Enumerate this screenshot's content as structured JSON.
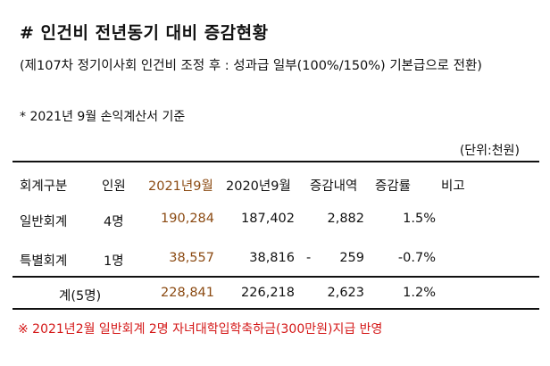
{
  "title": "# 인건비 전년동기 대비 증감현황",
  "subtitle": "(제107차 정기이사회  인건비 조정 후 : 성과급 일부(100%/150%) 기본급으로 전환)",
  "basis_note": "*  2021년 9월 손익계산서 기준",
  "unit_label": "(단위:천원)",
  "table": {
    "headers": {
      "category": "회계구분",
      "headcount": "인원",
      "current": "2021년9월",
      "previous": "2020년9월",
      "change": "증감내역",
      "rate": "증감률",
      "remarks": "비고"
    },
    "rows": [
      {
        "category": "일반회계",
        "headcount": "4명",
        "current": "190,284",
        "previous": "187,402",
        "sign": "",
        "change": "2,882",
        "rate": "1.5%",
        "remarks": ""
      },
      {
        "category": "특별회계",
        "headcount": "1명",
        "current": "38,557",
        "previous": "38,816",
        "sign": "-",
        "change": "259",
        "rate": "-0.7%",
        "remarks": ""
      }
    ],
    "total": {
      "label": "계(5명)",
      "current": "228,841",
      "previous": "226,218",
      "change": "2,623",
      "rate": "1.2%"
    }
  },
  "footnote": "※  2021년2월  일반회계 2명 자녀대학입학축하금(300만원)지급 반영",
  "colors": {
    "highlight": "#8b4a12",
    "footnote": "#d41717",
    "text": "#111111"
  }
}
